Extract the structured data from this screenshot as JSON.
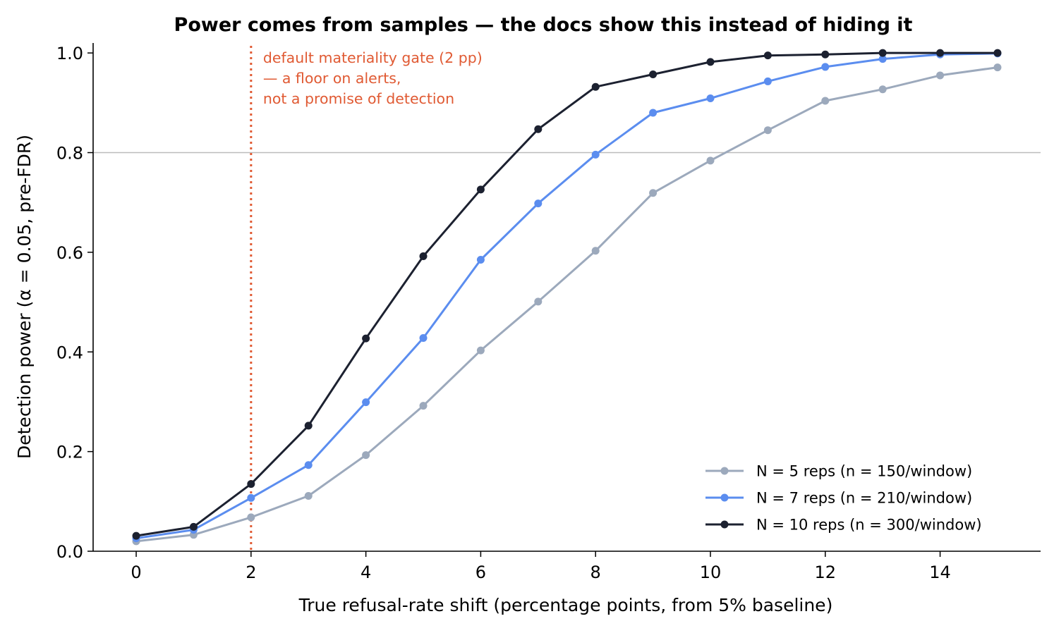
{
  "chart_data": {
    "type": "line",
    "title": "Power comes from samples — the docs show this instead of hiding it",
    "xlabel": "True refusal-rate shift (percentage points, from 5% baseline)",
    "ylabel": "Detection power (α = 0.05, pre-FDR)",
    "xlim": [
      -0.75,
      15.75
    ],
    "ylim": [
      0.0,
      1.02
    ],
    "x_ticks": [
      0,
      2,
      4,
      6,
      8,
      10,
      12,
      14
    ],
    "x_tick_labels": [
      "0",
      "2",
      "4",
      "6",
      "8",
      "10",
      "12",
      "14"
    ],
    "y_ticks": [
      0.0,
      0.2,
      0.4,
      0.6,
      0.8,
      1.0
    ],
    "y_tick_labels": [
      "0.0",
      "0.2",
      "0.4",
      "0.6",
      "0.8",
      "1.0"
    ],
    "x": [
      0,
      1,
      2,
      3,
      4,
      5,
      6,
      7,
      8,
      9,
      10,
      11,
      12,
      13,
      14,
      15
    ],
    "series": [
      {
        "name": "N = 5 reps (n = 150/window)",
        "color": "#9ca9bc",
        "values": [
          0.02,
          0.033,
          0.068,
          0.111,
          0.193,
          0.292,
          0.403,
          0.501,
          0.603,
          0.719,
          0.784,
          0.845,
          0.904,
          0.927,
          0.955,
          0.971
        ]
      },
      {
        "name": "N = 7 reps (n = 210/window)",
        "color": "#5b8def",
        "values": [
          0.026,
          0.043,
          0.107,
          0.173,
          0.299,
          0.428,
          0.585,
          0.698,
          0.796,
          0.88,
          0.909,
          0.943,
          0.972,
          0.988,
          0.997,
          0.999
        ]
      },
      {
        "name": "N = 10 reps (n = 300/window)",
        "color": "#1c2130",
        "values": [
          0.031,
          0.049,
          0.135,
          0.252,
          0.427,
          0.592,
          0.726,
          0.847,
          0.932,
          0.957,
          0.982,
          0.995,
          0.997,
          1.0,
          1.0,
          1.0
        ]
      }
    ],
    "reference_lines": {
      "horizontal": {
        "y": 0.8,
        "color": "#bbbbbb"
      },
      "vertical": {
        "x": 2,
        "color": "#e05a33",
        "style": "dotted"
      }
    },
    "annotation": {
      "lines": [
        "default materiality gate (2 pp)",
        "— a floor on alerts,",
        "not a promise of detection"
      ],
      "color": "#e05a33"
    },
    "legend": {
      "position": "lower-right"
    },
    "grid": false
  }
}
